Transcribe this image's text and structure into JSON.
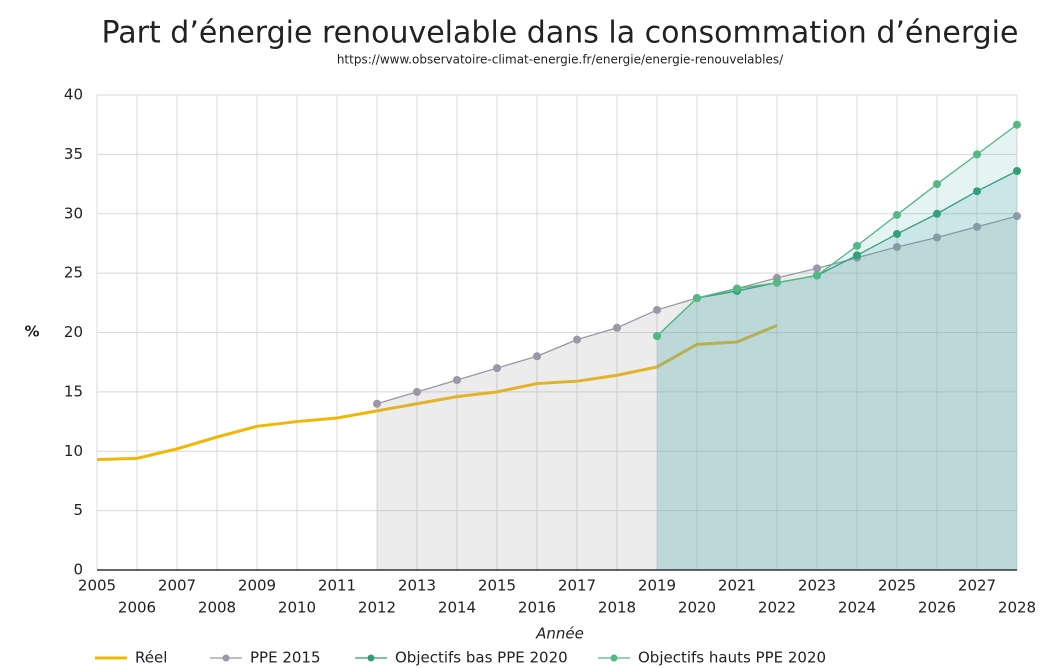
{
  "chart_data": {
    "type": "line",
    "title": "Part d’énergie renouvelable dans la consommation d’énergie",
    "subtitle": "https://www.observatoire-climat-energie.fr/energie/energie-renouvelables/",
    "x_label": "Année",
    "y_label": "%",
    "x": [
      2005,
      2006,
      2007,
      2008,
      2009,
      2010,
      2011,
      2012,
      2013,
      2014,
      2015,
      2016,
      2017,
      2018,
      2019,
      2020,
      2021,
      2022,
      2023,
      2024,
      2025,
      2026,
      2027,
      2028
    ],
    "series": [
      {
        "name": "Réel",
        "color": "#f2b705",
        "values": [
          9.3,
          9.4,
          10.2,
          11.2,
          12.1,
          12.5,
          12.8,
          13.4,
          14.0,
          14.6,
          15.0,
          15.7,
          15.9,
          16.4,
          17.1,
          19.0,
          19.2,
          20.6,
          null,
          null,
          null,
          null,
          null,
          null
        ]
      },
      {
        "name": "PPE 2015",
        "color": "#9c96a6",
        "values": [
          null,
          null,
          null,
          null,
          null,
          null,
          null,
          14.0,
          15.0,
          16.0,
          17.0,
          18.0,
          19.4,
          20.4,
          21.9,
          22.9,
          23.7,
          24.6,
          25.4,
          26.3,
          27.2,
          28.0,
          28.9,
          29.8
        ]
      },
      {
        "name": "Objectifs bas PPE 2020",
        "color": "#2f9e74",
        "values": [
          null,
          null,
          null,
          null,
          null,
          null,
          null,
          null,
          null,
          null,
          null,
          null,
          null,
          null,
          19.7,
          22.9,
          23.5,
          24.2,
          24.8,
          26.5,
          28.3,
          30.0,
          31.9,
          33.6
        ]
      },
      {
        "name": "Objectifs hauts PPE 2020",
        "color": "#52b884",
        "values": [
          null,
          null,
          null,
          null,
          null,
          null,
          null,
          null,
          null,
          null,
          null,
          null,
          null,
          null,
          19.7,
          22.9,
          23.7,
          24.2,
          24.8,
          27.3,
          29.9,
          32.5,
          35.0,
          37.5
        ]
      }
    ],
    "xlim": [
      2005,
      2028
    ],
    "xticks": [
      2005,
      2006,
      2007,
      2008,
      2009,
      2010,
      2011,
      2012,
      2013,
      2014,
      2015,
      2016,
      2017,
      2018,
      2019,
      2020,
      2021,
      2022,
      2023,
      2024,
      2025,
      2026,
      2027,
      2028
    ],
    "ylim": [
      0,
      40
    ],
    "yticks": [
      0,
      5,
      10,
      15,
      20,
      25,
      30,
      35,
      40
    ],
    "grid": true
  }
}
